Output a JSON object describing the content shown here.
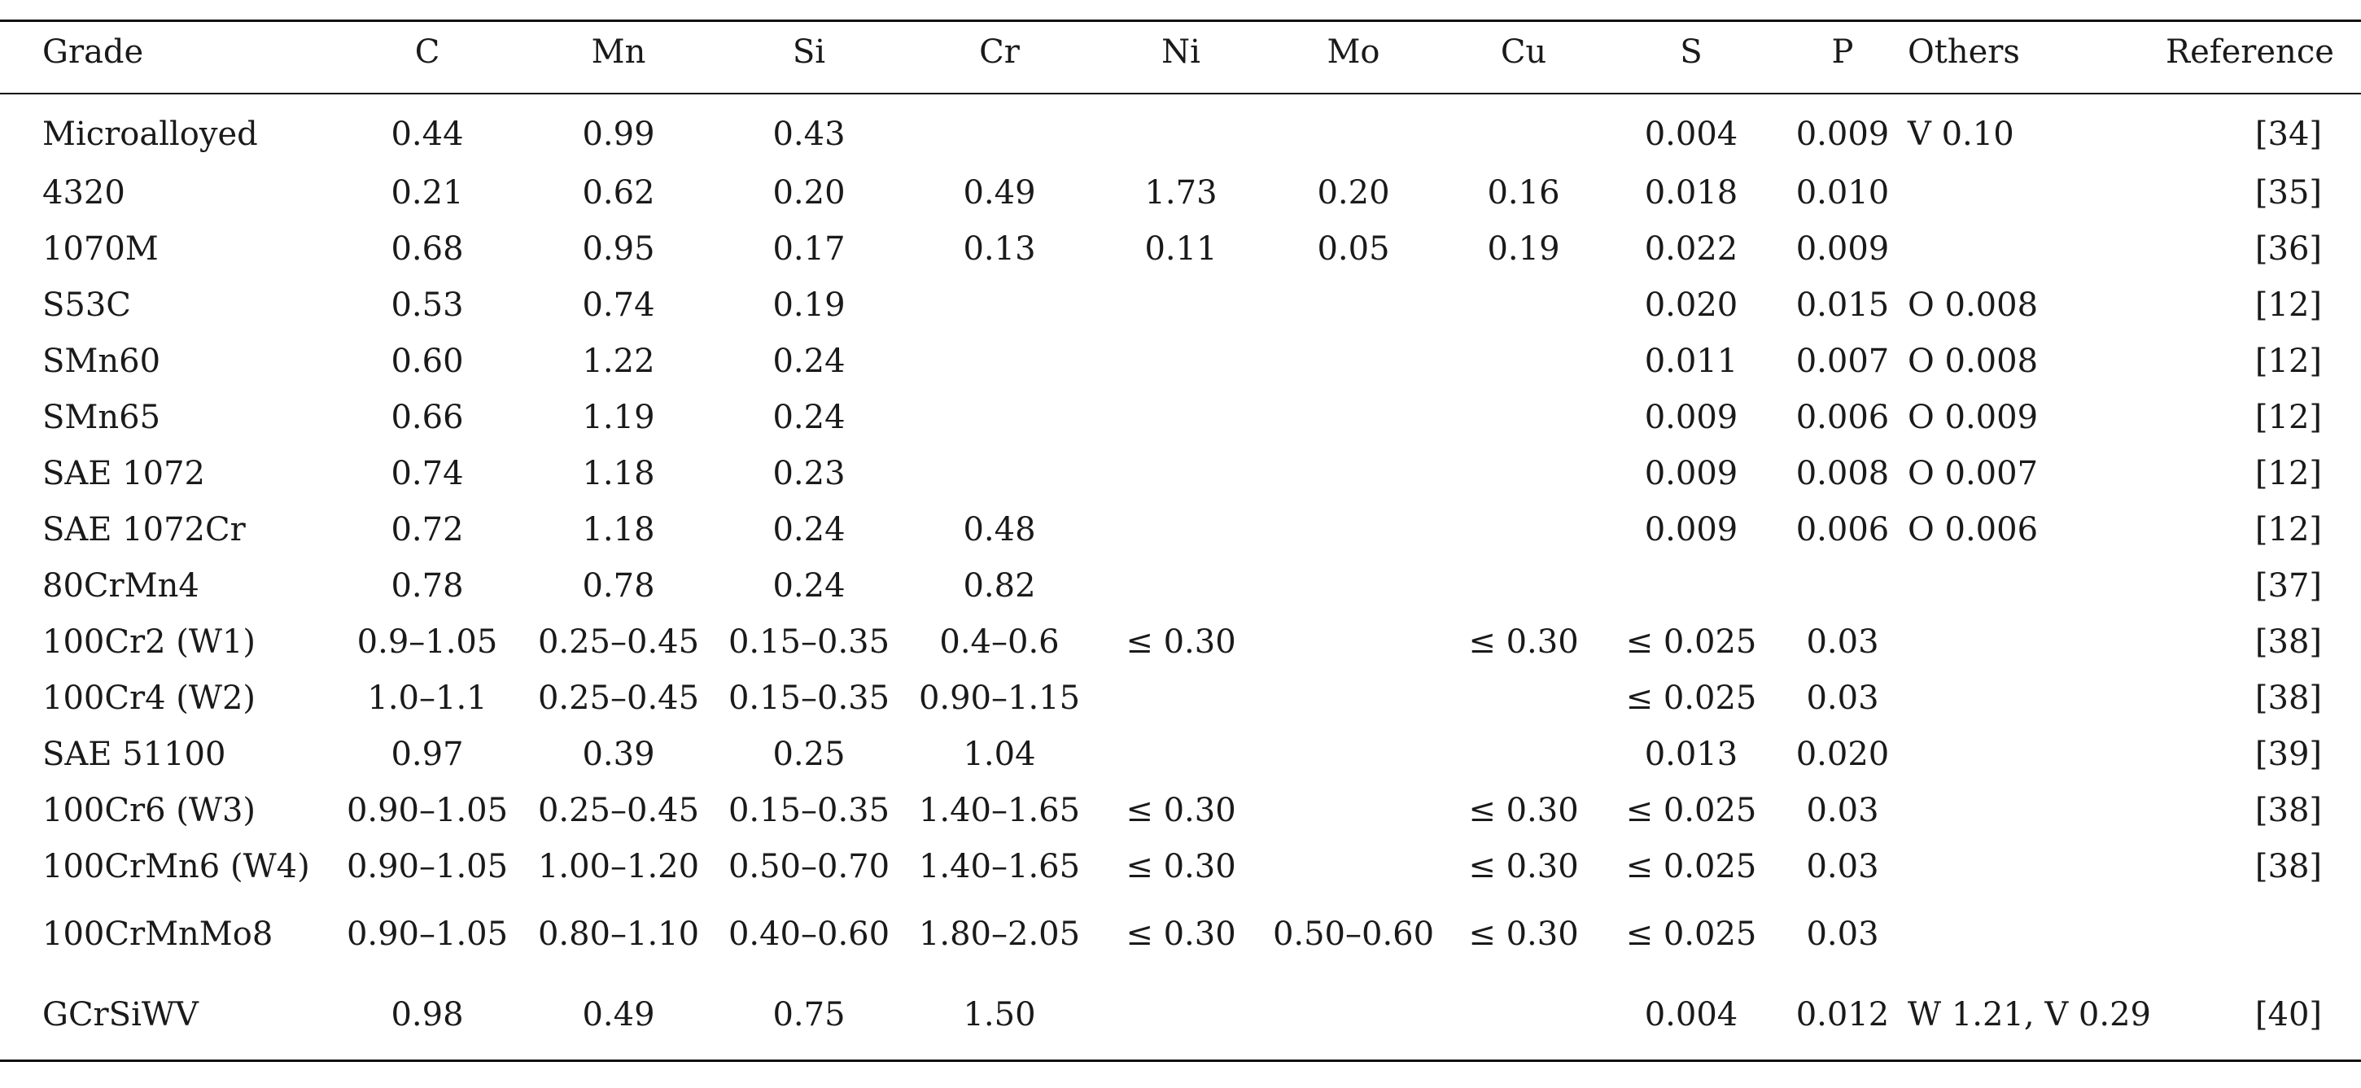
{
  "table": {
    "headers": [
      "Grade",
      "C",
      "Mn",
      "Si",
      "Cr",
      "Ni",
      "Mo",
      "Cu",
      "S",
      "P",
      "Others",
      "Reference"
    ],
    "rows": [
      [
        "Microalloyed",
        "0.44",
        "0.99",
        "0.43",
        "",
        "",
        "",
        "",
        "0.004",
        "0.009",
        "V 0.10",
        "[34]"
      ],
      [
        "4320",
        "0.21",
        "0.62",
        "0.20",
        "0.49",
        "1.73",
        "0.20",
        "0.16",
        "0.018",
        "0.010",
        "",
        "[35]"
      ],
      [
        "1070M",
        "0.68",
        "0.95",
        "0.17",
        "0.13",
        "0.11",
        "0.05",
        "0.19",
        "0.022",
        "0.009",
        "",
        "[36]"
      ],
      [
        "S53C",
        "0.53",
        "0.74",
        "0.19",
        "",
        "",
        "",
        "",
        "0.020",
        "0.015",
        "O 0.008",
        "[12]"
      ],
      [
        "SMn60",
        "0.60",
        "1.22",
        "0.24",
        "",
        "",
        "",
        "",
        "0.011",
        "0.007",
        "O 0.008",
        "[12]"
      ],
      [
        "SMn65",
        "0.66",
        "1.19",
        "0.24",
        "",
        "",
        "",
        "",
        "0.009",
        "0.006",
        "O 0.009",
        "[12]"
      ],
      [
        "SAE 1072",
        "0.74",
        "1.18",
        "0.23",
        "",
        "",
        "",
        "",
        "0.009",
        "0.008",
        "O 0.007",
        "[12]"
      ],
      [
        "SAE 1072Cr",
        "0.72",
        "1.18",
        "0.24",
        "0.48",
        "",
        "",
        "",
        "0.009",
        "0.006",
        "O 0.006",
        "[12]"
      ],
      [
        "80CrMn4",
        "0.78",
        "0.78",
        "0.24",
        "0.82",
        "",
        "",
        "",
        "",
        "",
        "",
        "[37]"
      ],
      [
        "100Cr2 (W1)",
        "0.9–1.05",
        "0.25–0.45",
        "0.15–0.35",
        "0.4–0.6",
        "≤ 0.30",
        "",
        "≤ 0.30",
        "≤ 0.025",
        "0.03",
        "",
        "[38]"
      ],
      [
        "100Cr4 (W2)",
        "1.0–1.1",
        "0.25–0.45",
        "0.15–0.35",
        "0.90–1.15",
        "",
        "",
        "",
        "≤ 0.025",
        "0.03",
        "",
        "[38]"
      ],
      [
        "SAE 51100",
        "0.97",
        "0.39",
        "0.25",
        "1.04",
        "",
        "",
        "",
        "0.013",
        "0.020",
        "",
        "[39]"
      ],
      [
        "100Cr6 (W3)",
        "0.90–1.05",
        "0.25–0.45",
        "0.15–0.35",
        "1.40–1.65",
        "≤ 0.30",
        "",
        "≤ 0.30",
        "≤ 0.025",
        "0.03",
        "",
        "[38]"
      ],
      [
        "100CrMn6 (W4)",
        "0.90–1.05",
        "1.00–1.20",
        "0.50–0.70",
        "1.40–1.65",
        "≤ 0.30",
        "",
        "≤ 0.30",
        "≤ 0.025",
        "0.03",
        "",
        "[38]"
      ],
      [
        "100CrMnMo8",
        "0.90–1.05",
        "0.80–1.10",
        "0.40–0.60",
        "1.80–2.05",
        "≤ 0.30",
        "0.50–0.60",
        "≤ 0.30",
        "≤ 0.025",
        "0.03",
        "",
        ""
      ],
      [
        "GCrSiWV",
        "0.98",
        "0.49",
        "0.75",
        "1.50",
        "",
        "",
        "",
        "0.004",
        "0.012",
        "W 1.21, V 0.29",
        "[40]"
      ]
    ]
  }
}
